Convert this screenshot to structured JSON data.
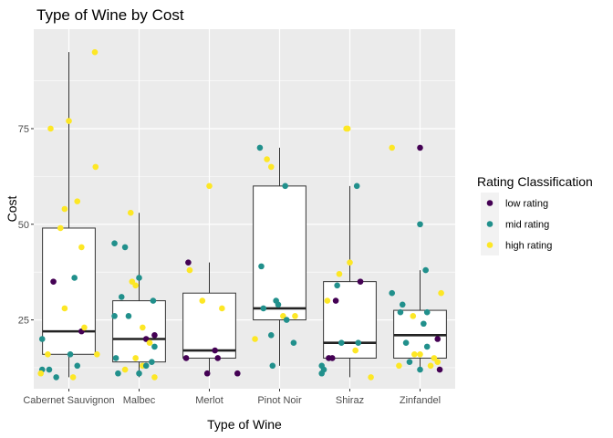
{
  "chart_data": {
    "type": "boxplot",
    "title": "Type of Wine by Cost",
    "xlabel": "Type of Wine",
    "ylabel": "Cost",
    "ylim": [
      7,
      101
    ],
    "yticks": [
      25,
      50,
      75
    ],
    "grid": true,
    "legend_position": "right",
    "legend": {
      "title": "Rating Classification",
      "entries": [
        {
          "name": "low rating",
          "color": "#440154"
        },
        {
          "name": "mid rating",
          "color": "#21908C"
        },
        {
          "name": "high rating",
          "color": "#FDE725"
        }
      ]
    },
    "categories": [
      "Cabernet Sauvignon",
      "Malbec",
      "Merlot",
      "Pinot Noir",
      "Shiraz",
      "Zinfandel"
    ],
    "boxes": [
      {
        "category": "Cabernet Sauvignon",
        "whisker_low": 10,
        "q1": 16,
        "median": 22,
        "q3": 49,
        "whisker_high": 95
      },
      {
        "category": "Malbec",
        "whisker_low": 10,
        "q1": 14,
        "median": 20,
        "q3": 30,
        "whisker_high": 53
      },
      {
        "category": "Merlot",
        "whisker_low": 11,
        "q1": 15,
        "median": 17,
        "q3": 32,
        "whisker_high": 40
      },
      {
        "category": "Pinot Noir",
        "whisker_low": 13,
        "q1": 25,
        "median": 28,
        "q3": 60,
        "whisker_high": 70
      },
      {
        "category": "Shiraz",
        "whisker_low": 10,
        "q1": 15,
        "median": 19,
        "q3": 35,
        "whisker_high": 60
      },
      {
        "category": "Zinfandel",
        "whisker_low": 12,
        "q1": 15,
        "median": 21,
        "q3": 27.5,
        "whisker_high": 38
      }
    ],
    "points": [
      {
        "category": "Cabernet Sauvignon",
        "jitter": -0.28,
        "y": 12,
        "rating": "mid rating"
      },
      {
        "category": "Cabernet Sauvignon",
        "jitter": -0.38,
        "y": 12,
        "rating": "mid rating"
      },
      {
        "category": "Cabernet Sauvignon",
        "jitter": -0.4,
        "y": 11,
        "rating": "high rating"
      },
      {
        "category": "Cabernet Sauvignon",
        "jitter": -0.38,
        "y": 20,
        "rating": "mid rating"
      },
      {
        "category": "Cabernet Sauvignon",
        "jitter": -0.3,
        "y": 16,
        "rating": "high rating"
      },
      {
        "category": "Cabernet Sauvignon",
        "jitter": -0.26,
        "y": 75,
        "rating": "high rating"
      },
      {
        "category": "Cabernet Sauvignon",
        "jitter": -0.22,
        "y": 35,
        "rating": "low rating"
      },
      {
        "category": "Cabernet Sauvignon",
        "jitter": -0.18,
        "y": 10,
        "rating": "mid rating"
      },
      {
        "category": "Cabernet Sauvignon",
        "jitter": -0.12,
        "y": 49,
        "rating": "high rating"
      },
      {
        "category": "Cabernet Sauvignon",
        "jitter": -0.06,
        "y": 54,
        "rating": "high rating"
      },
      {
        "category": "Cabernet Sauvignon",
        "jitter": -0.06,
        "y": 28,
        "rating": "high rating"
      },
      {
        "category": "Cabernet Sauvignon",
        "jitter": 0.0,
        "y": 77,
        "rating": "high rating"
      },
      {
        "category": "Cabernet Sauvignon",
        "jitter": 0.02,
        "y": 16,
        "rating": "mid rating"
      },
      {
        "category": "Cabernet Sauvignon",
        "jitter": 0.08,
        "y": 36,
        "rating": "mid rating"
      },
      {
        "category": "Cabernet Sauvignon",
        "jitter": 0.12,
        "y": 56,
        "rating": "high rating"
      },
      {
        "category": "Cabernet Sauvignon",
        "jitter": 0.18,
        "y": 44,
        "rating": "high rating"
      },
      {
        "category": "Cabernet Sauvignon",
        "jitter": 0.18,
        "y": 22,
        "rating": "low rating"
      },
      {
        "category": "Cabernet Sauvignon",
        "jitter": 0.22,
        "y": 23,
        "rating": "high rating"
      },
      {
        "category": "Cabernet Sauvignon",
        "jitter": 0.12,
        "y": 13,
        "rating": "mid rating"
      },
      {
        "category": "Cabernet Sauvignon",
        "jitter": 0.06,
        "y": 10,
        "rating": "high rating"
      },
      {
        "category": "Cabernet Sauvignon",
        "jitter": 0.37,
        "y": 95,
        "rating": "high rating"
      },
      {
        "category": "Cabernet Sauvignon",
        "jitter": 0.38,
        "y": 65,
        "rating": "high rating"
      },
      {
        "category": "Cabernet Sauvignon",
        "jitter": 0.4,
        "y": 16,
        "rating": "high rating"
      },
      {
        "category": "Malbec",
        "jitter": -0.35,
        "y": 45,
        "rating": "mid rating"
      },
      {
        "category": "Malbec",
        "jitter": -0.35,
        "y": 26,
        "rating": "mid rating"
      },
      {
        "category": "Malbec",
        "jitter": -0.33,
        "y": 15,
        "rating": "mid rating"
      },
      {
        "category": "Malbec",
        "jitter": -0.3,
        "y": 11,
        "rating": "mid rating"
      },
      {
        "category": "Malbec",
        "jitter": -0.25,
        "y": 31,
        "rating": "mid rating"
      },
      {
        "category": "Malbec",
        "jitter": -0.2,
        "y": 44,
        "rating": "mid rating"
      },
      {
        "category": "Malbec",
        "jitter": -0.2,
        "y": 12,
        "rating": "high rating"
      },
      {
        "category": "Malbec",
        "jitter": -0.15,
        "y": 26,
        "rating": "mid rating"
      },
      {
        "category": "Malbec",
        "jitter": -0.12,
        "y": 53,
        "rating": "high rating"
      },
      {
        "category": "Malbec",
        "jitter": -0.1,
        "y": 35,
        "rating": "high rating"
      },
      {
        "category": "Malbec",
        "jitter": -0.05,
        "y": 34,
        "rating": "high rating"
      },
      {
        "category": "Malbec",
        "jitter": -0.05,
        "y": 15,
        "rating": "high rating"
      },
      {
        "category": "Malbec",
        "jitter": 0.0,
        "y": 36,
        "rating": "mid rating"
      },
      {
        "category": "Malbec",
        "jitter": 0.0,
        "y": 11,
        "rating": "mid rating"
      },
      {
        "category": "Malbec",
        "jitter": 0.05,
        "y": 23,
        "rating": "high rating"
      },
      {
        "category": "Malbec",
        "jitter": 0.05,
        "y": 13,
        "rating": "high rating"
      },
      {
        "category": "Malbec",
        "jitter": 0.1,
        "y": 20,
        "rating": "low rating"
      },
      {
        "category": "Malbec",
        "jitter": 0.1,
        "y": 13,
        "rating": "mid rating"
      },
      {
        "category": "Malbec",
        "jitter": 0.15,
        "y": 19,
        "rating": "high rating"
      },
      {
        "category": "Malbec",
        "jitter": 0.18,
        "y": 14,
        "rating": "mid rating"
      },
      {
        "category": "Malbec",
        "jitter": 0.2,
        "y": 30,
        "rating": "mid rating"
      },
      {
        "category": "Malbec",
        "jitter": 0.22,
        "y": 21,
        "rating": "low rating"
      },
      {
        "category": "Malbec",
        "jitter": 0.22,
        "y": 18,
        "rating": "mid rating"
      },
      {
        "category": "Malbec",
        "jitter": 0.22,
        "y": 10,
        "rating": "high rating"
      },
      {
        "category": "Merlot",
        "jitter": -0.33,
        "y": 15,
        "rating": "low rating"
      },
      {
        "category": "Merlot",
        "jitter": -0.3,
        "y": 40,
        "rating": "low rating"
      },
      {
        "category": "Merlot",
        "jitter": -0.28,
        "y": 38,
        "rating": "high rating"
      },
      {
        "category": "Merlot",
        "jitter": -0.1,
        "y": 30,
        "rating": "high rating"
      },
      {
        "category": "Merlot",
        "jitter": -0.03,
        "y": 11,
        "rating": "low rating"
      },
      {
        "category": "Merlot",
        "jitter": 0.0,
        "y": 60,
        "rating": "high rating"
      },
      {
        "category": "Merlot",
        "jitter": 0.08,
        "y": 17,
        "rating": "low rating"
      },
      {
        "category": "Merlot",
        "jitter": 0.12,
        "y": 15,
        "rating": "low rating"
      },
      {
        "category": "Merlot",
        "jitter": 0.18,
        "y": 28,
        "rating": "high rating"
      },
      {
        "category": "Merlot",
        "jitter": 0.4,
        "y": 11,
        "rating": "low rating"
      },
      {
        "category": "Pinot Noir",
        "jitter": -0.35,
        "y": 20,
        "rating": "high rating"
      },
      {
        "category": "Pinot Noir",
        "jitter": -0.28,
        "y": 70,
        "rating": "mid rating"
      },
      {
        "category": "Pinot Noir",
        "jitter": -0.26,
        "y": 39,
        "rating": "mid rating"
      },
      {
        "category": "Pinot Noir",
        "jitter": -0.23,
        "y": 28,
        "rating": "mid rating"
      },
      {
        "category": "Pinot Noir",
        "jitter": -0.18,
        "y": 67,
        "rating": "high rating"
      },
      {
        "category": "Pinot Noir",
        "jitter": -0.12,
        "y": 65,
        "rating": "high rating"
      },
      {
        "category": "Pinot Noir",
        "jitter": -0.12,
        "y": 21,
        "rating": "mid rating"
      },
      {
        "category": "Pinot Noir",
        "jitter": -0.1,
        "y": 13,
        "rating": "mid rating"
      },
      {
        "category": "Pinot Noir",
        "jitter": -0.05,
        "y": 30,
        "rating": "mid rating"
      },
      {
        "category": "Pinot Noir",
        "jitter": -0.02,
        "y": 29,
        "rating": "mid rating"
      },
      {
        "category": "Pinot Noir",
        "jitter": 0.05,
        "y": 26,
        "rating": "high rating"
      },
      {
        "category": "Pinot Noir",
        "jitter": 0.08,
        "y": 60,
        "rating": "mid rating"
      },
      {
        "category": "Pinot Noir",
        "jitter": 0.1,
        "y": 25,
        "rating": "mid rating"
      },
      {
        "category": "Pinot Noir",
        "jitter": 0.2,
        "y": 19,
        "rating": "mid rating"
      },
      {
        "category": "Pinot Noir",
        "jitter": 0.22,
        "y": 26,
        "rating": "high rating"
      },
      {
        "category": "Shiraz",
        "jitter": -0.4,
        "y": 13,
        "rating": "mid rating"
      },
      {
        "category": "Shiraz",
        "jitter": -0.4,
        "y": 11,
        "rating": "mid rating"
      },
      {
        "category": "Shiraz",
        "jitter": -0.37,
        "y": 12,
        "rating": "mid rating"
      },
      {
        "category": "Shiraz",
        "jitter": -0.32,
        "y": 30,
        "rating": "high rating"
      },
      {
        "category": "Shiraz",
        "jitter": -0.3,
        "y": 15,
        "rating": "low rating"
      },
      {
        "category": "Shiraz",
        "jitter": -0.25,
        "y": 15,
        "rating": "low rating"
      },
      {
        "category": "Shiraz",
        "jitter": -0.2,
        "y": 30,
        "rating": "low rating"
      },
      {
        "category": "Shiraz",
        "jitter": -0.18,
        "y": 34,
        "rating": "mid rating"
      },
      {
        "category": "Shiraz",
        "jitter": -0.15,
        "y": 37,
        "rating": "high rating"
      },
      {
        "category": "Shiraz",
        "jitter": -0.12,
        "y": 19,
        "rating": "mid rating"
      },
      {
        "category": "Shiraz",
        "jitter": -0.05,
        "y": 75,
        "rating": "high rating"
      },
      {
        "category": "Shiraz",
        "jitter": -0.03,
        "y": 75,
        "rating": "high rating"
      },
      {
        "category": "Shiraz",
        "jitter": 0.0,
        "y": 40,
        "rating": "high rating"
      },
      {
        "category": "Shiraz",
        "jitter": 0.08,
        "y": 17,
        "rating": "high rating"
      },
      {
        "category": "Shiraz",
        "jitter": 0.1,
        "y": 60,
        "rating": "mid rating"
      },
      {
        "category": "Shiraz",
        "jitter": 0.12,
        "y": 19,
        "rating": "mid rating"
      },
      {
        "category": "Shiraz",
        "jitter": 0.15,
        "y": 35,
        "rating": "low rating"
      },
      {
        "category": "Shiraz",
        "jitter": 0.3,
        "y": 10,
        "rating": "high rating"
      },
      {
        "category": "Zinfandel",
        "jitter": -0.4,
        "y": 70,
        "rating": "high rating"
      },
      {
        "category": "Zinfandel",
        "jitter": -0.4,
        "y": 32,
        "rating": "mid rating"
      },
      {
        "category": "Zinfandel",
        "jitter": -0.3,
        "y": 13,
        "rating": "high rating"
      },
      {
        "category": "Zinfandel",
        "jitter": -0.28,
        "y": 27,
        "rating": "mid rating"
      },
      {
        "category": "Zinfandel",
        "jitter": -0.25,
        "y": 29,
        "rating": "mid rating"
      },
      {
        "category": "Zinfandel",
        "jitter": -0.2,
        "y": 19,
        "rating": "mid rating"
      },
      {
        "category": "Zinfandel",
        "jitter": -0.15,
        "y": 14,
        "rating": "mid rating"
      },
      {
        "category": "Zinfandel",
        "jitter": -0.1,
        "y": 26,
        "rating": "high rating"
      },
      {
        "category": "Zinfandel",
        "jitter": -0.08,
        "y": 16,
        "rating": "high rating"
      },
      {
        "category": "Zinfandel",
        "jitter": 0.0,
        "y": 70,
        "rating": "low rating"
      },
      {
        "category": "Zinfandel",
        "jitter": 0.0,
        "y": 50,
        "rating": "mid rating"
      },
      {
        "category": "Zinfandel",
        "jitter": 0.0,
        "y": 16,
        "rating": "high rating"
      },
      {
        "category": "Zinfandel",
        "jitter": 0.0,
        "y": 12,
        "rating": "mid rating"
      },
      {
        "category": "Zinfandel",
        "jitter": 0.05,
        "y": 24,
        "rating": "mid rating"
      },
      {
        "category": "Zinfandel",
        "jitter": 0.08,
        "y": 38,
        "rating": "mid rating"
      },
      {
        "category": "Zinfandel",
        "jitter": 0.1,
        "y": 27,
        "rating": "mid rating"
      },
      {
        "category": "Zinfandel",
        "jitter": 0.1,
        "y": 18,
        "rating": "mid rating"
      },
      {
        "category": "Zinfandel",
        "jitter": 0.15,
        "y": 13,
        "rating": "high rating"
      },
      {
        "category": "Zinfandel",
        "jitter": 0.2,
        "y": 15,
        "rating": "high rating"
      },
      {
        "category": "Zinfandel",
        "jitter": 0.25,
        "y": 20,
        "rating": "low rating"
      },
      {
        "category": "Zinfandel",
        "jitter": 0.25,
        "y": 14,
        "rating": "high rating"
      },
      {
        "category": "Zinfandel",
        "jitter": 0.28,
        "y": 12,
        "rating": "low rating"
      },
      {
        "category": "Zinfandel",
        "jitter": 0.3,
        "y": 32,
        "rating": "high rating"
      }
    ]
  }
}
